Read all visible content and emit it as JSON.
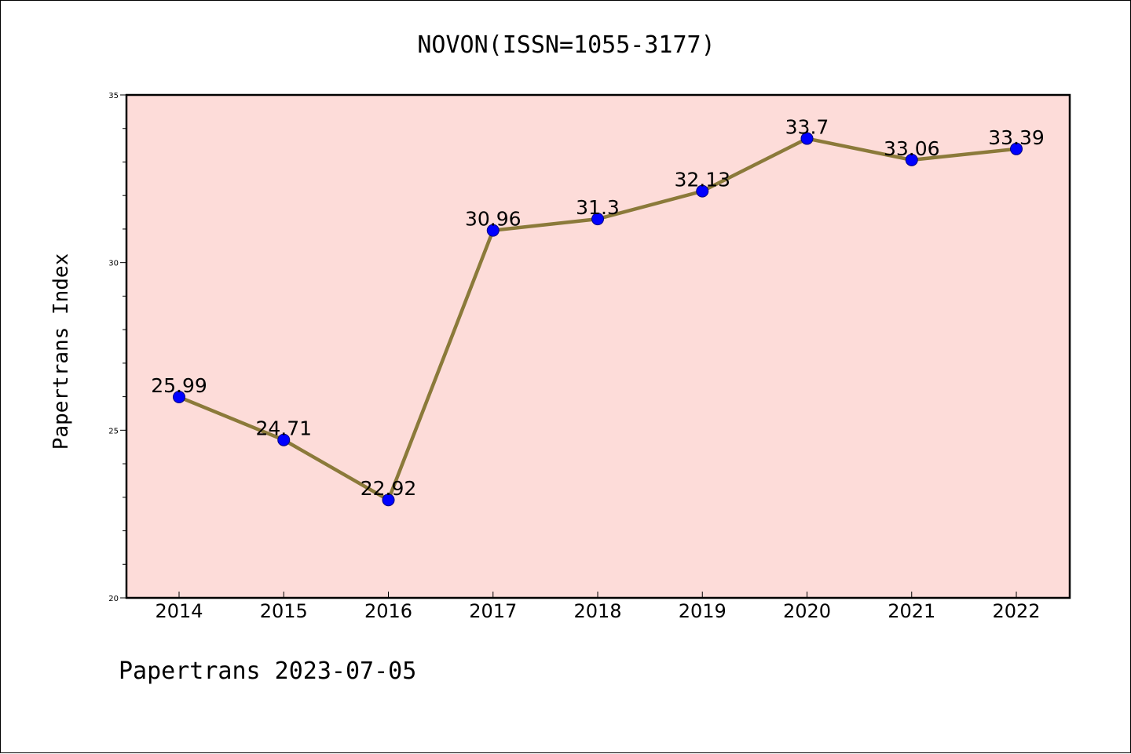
{
  "colors": {
    "plot_background": "#fddcd9",
    "line": "#8b7a3a",
    "marker_fill": "#0000ff",
    "marker_edge": "#000080",
    "axes": "#000000"
  },
  "chart_data": {
    "type": "line",
    "title": "NOVON(ISSN=1055-3177)",
    "xlabel": "",
    "ylabel": "Papertrans Index",
    "footer": "Papertrans 2023-07-05",
    "categories": [
      "2014",
      "2015",
      "2016",
      "2017",
      "2018",
      "2019",
      "2020",
      "2021",
      "2022"
    ],
    "series": [
      {
        "values": [
          25.99,
          24.71,
          22.92,
          30.96,
          31.3,
          32.13,
          33.7,
          33.06,
          33.39
        ],
        "labels": [
          "25.99",
          "24.71",
          "22.92",
          "30.96",
          "31.3",
          "32.13",
          "33.7",
          "33.06",
          "33.39"
        ]
      }
    ],
    "ylim": [
      20,
      35
    ],
    "y_major_ticks": [
      "20",
      "25",
      "30",
      "35"
    ],
    "y_minor_step": 1,
    "grid": false,
    "legend": "none"
  }
}
